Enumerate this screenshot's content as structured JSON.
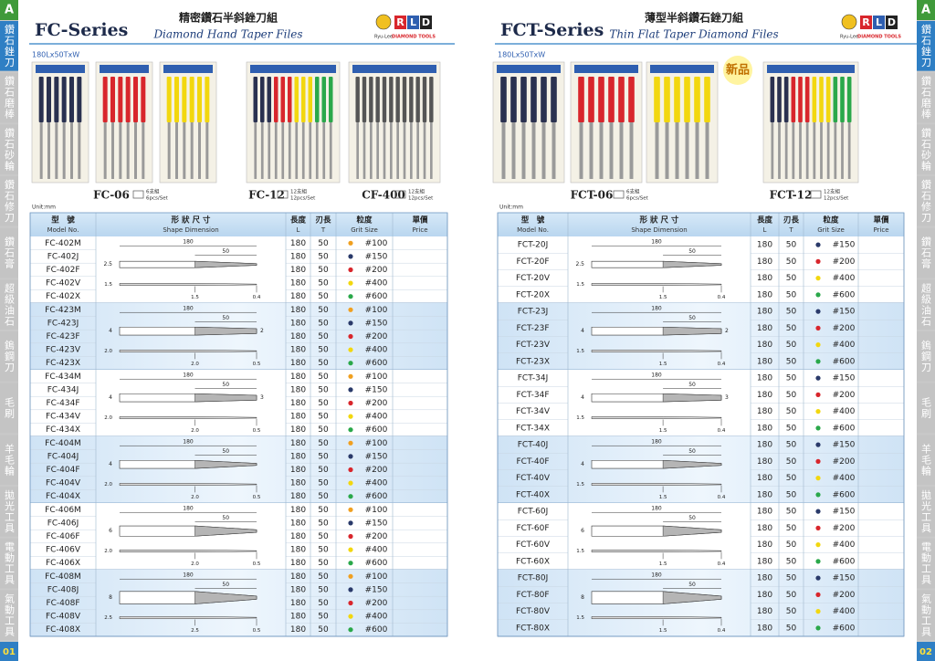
{
  "sidebar": {
    "letter": "A",
    "tabs": [
      "鑽石銼刀",
      "鑽石磨棒",
      "鑽石砂輪",
      "鑽石修刀",
      "鑽石膏",
      "超級油石",
      "鎢鋼刀",
      "毛刷",
      "羊毛輪",
      "拋光工具",
      "電動工具",
      "氣動工具"
    ],
    "pages": [
      "01",
      "02"
    ]
  },
  "grit_colors": {
    "#100": "#f0a020",
    "#150": "#2a3a6a",
    "#200": "#d8262c",
    "#400": "#f2d70f",
    "#600": "#2aa84a"
  },
  "pages": [
    {
      "series": "FC-Series",
      "title_zh": "精密鑽石半斜銼刀組",
      "title_en": "Diamond Hand Taper Files",
      "brand": [
        "R",
        "L",
        "D"
      ],
      "brand_sub": "Ryu-Lee",
      "brand_tag": "DIAMOND TOOLS",
      "size": "180Lx50TxW",
      "products": [
        {
          "name": "FC-06",
          "zh": "6支組",
          "en": "6pcs/Set"
        },
        {
          "name": "FC-12",
          "zh": "12支組",
          "en": "12pcs/Set"
        },
        {
          "name": "CF-400",
          "zh": "12支組",
          "en": "12pcs/Set"
        }
      ],
      "unit": "Unit:mm",
      "headers": [
        [
          "型　號",
          "Model No."
        ],
        [
          "形 狀 尺 寸",
          "Shape Dimension"
        ],
        [
          "長度",
          "L"
        ],
        [
          "刃長",
          "T"
        ],
        [
          "粒度",
          "Grit Size"
        ],
        [
          "單價",
          "Price"
        ]
      ],
      "groups": [
        {
          "dims": {
            "length": "180",
            "blade": "50",
            "width": "2.5",
            "thick": "1.5",
            "base": "1.5",
            "end": "0.4"
          },
          "rows": [
            [
              "FC-402M",
              180,
              50,
              "#100"
            ],
            [
              "FC-402J",
              180,
              50,
              "#150"
            ],
            [
              "FC-402F",
              180,
              50,
              "#200"
            ],
            [
              "FC-402V",
              180,
              50,
              "#400"
            ],
            [
              "FC-402X",
              180,
              50,
              "#600"
            ]
          ]
        },
        {
          "dims": {
            "length": "180",
            "blade": "50",
            "width": "4",
            "tip": "2",
            "thick": "2.0",
            "base": "2.0",
            "end": "0.5"
          },
          "rows": [
            [
              "FC-423M",
              180,
              50,
              "#100"
            ],
            [
              "FC-423J",
              180,
              50,
              "#150"
            ],
            [
              "FC-423F",
              180,
              50,
              "#200"
            ],
            [
              "FC-423V",
              180,
              50,
              "#400"
            ],
            [
              "FC-423X",
              180,
              50,
              "#600"
            ]
          ]
        },
        {
          "dims": {
            "length": "180",
            "blade": "50",
            "width": "4",
            "tip": "3",
            "thick": "2.0",
            "base": "2.0",
            "end": "0.5"
          },
          "rows": [
            [
              "FC-434M",
              180,
              50,
              "#100"
            ],
            [
              "FC-434J",
              180,
              50,
              "#150"
            ],
            [
              "FC-434F",
              180,
              50,
              "#200"
            ],
            [
              "FC-434V",
              180,
              50,
              "#400"
            ],
            [
              "FC-434X",
              180,
              50,
              "#600"
            ]
          ]
        },
        {
          "dims": {
            "length": "180",
            "blade": "50",
            "width": "4",
            "thick": "2.0",
            "base": "2.0",
            "end": "0.5"
          },
          "rows": [
            [
              "FC-404M",
              180,
              50,
              "#100"
            ],
            [
              "FC-404J",
              180,
              50,
              "#150"
            ],
            [
              "FC-404F",
              180,
              50,
              "#200"
            ],
            [
              "FC-404V",
              180,
              50,
              "#400"
            ],
            [
              "FC-404X",
              180,
              50,
              "#600"
            ]
          ]
        },
        {
          "dims": {
            "length": "180",
            "blade": "50",
            "width": "6",
            "thick": "2.0",
            "base": "2.0",
            "end": "0.5"
          },
          "rows": [
            [
              "FC-406M",
              180,
              50,
              "#100"
            ],
            [
              "FC-406J",
              180,
              50,
              "#150"
            ],
            [
              "FC-406F",
              180,
              50,
              "#200"
            ],
            [
              "FC-406V",
              180,
              50,
              "#400"
            ],
            [
              "FC-406X",
              180,
              50,
              "#600"
            ]
          ]
        },
        {
          "dims": {
            "length": "180",
            "blade": "50",
            "width": "8",
            "thick": "2.5",
            "base": "2.5",
            "end": "0.5"
          },
          "rows": [
            [
              "FC-408M",
              180,
              50,
              "#100"
            ],
            [
              "FC-408J",
              180,
              50,
              "#150"
            ],
            [
              "FC-408F",
              180,
              50,
              "#200"
            ],
            [
              "FC-408V",
              180,
              50,
              "#400"
            ],
            [
              "FC-408X",
              180,
              50,
              "#600"
            ]
          ]
        }
      ]
    },
    {
      "series": "FCT-Series",
      "title_zh": "薄型半斜鑽石銼刀組",
      "title_en": "Thin Flat Taper Diamond Files",
      "brand": [
        "R",
        "L",
        "D"
      ],
      "brand_sub": "Ryu-Lee",
      "brand_tag": "DIAMOND TOOLS",
      "size": "180Lx50TxW",
      "badge": "新品",
      "products": [
        {
          "name": "FCT-06",
          "zh": "6支組",
          "en": "6pcs/Set"
        },
        {
          "name": "FCT-12",
          "zh": "12支組",
          "en": "12pcs/Set"
        }
      ],
      "unit": "Unit:mm",
      "headers": [
        [
          "型　號",
          "Model No."
        ],
        [
          "形 狀 尺 寸",
          "Shape Dimension"
        ],
        [
          "長度",
          "L"
        ],
        [
          "刃長",
          "T"
        ],
        [
          "粒度",
          "Grit Size"
        ],
        [
          "單價",
          "Price"
        ]
      ],
      "groups": [
        {
          "dims": {
            "length": "180",
            "blade": "50",
            "width": "2.5",
            "thick": "1.5",
            "base": "1.5",
            "end": "0.4"
          },
          "rows": [
            [
              "FCT-20J",
              180,
              50,
              "#150"
            ],
            [
              "FCT-20F",
              180,
              50,
              "#200"
            ],
            [
              "FCT-20V",
              180,
              50,
              "#400"
            ],
            [
              "FCT-20X",
              180,
              50,
              "#600"
            ]
          ]
        },
        {
          "dims": {
            "length": "180",
            "blade": "50",
            "width": "4",
            "tip": "2",
            "thick": "1.5",
            "base": "1.5",
            "end": "0.4"
          },
          "rows": [
            [
              "FCT-23J",
              180,
              50,
              "#150"
            ],
            [
              "FCT-23F",
              180,
              50,
              "#200"
            ],
            [
              "FCT-23V",
              180,
              50,
              "#400"
            ],
            [
              "FCT-23X",
              180,
              50,
              "#600"
            ]
          ]
        },
        {
          "dims": {
            "length": "180",
            "blade": "50",
            "width": "4",
            "tip": "3",
            "thick": "1.5",
            "base": "1.5",
            "end": "0.4"
          },
          "rows": [
            [
              "FCT-34J",
              180,
              50,
              "#150"
            ],
            [
              "FCT-34F",
              180,
              50,
              "#200"
            ],
            [
              "FCT-34V",
              180,
              50,
              "#400"
            ],
            [
              "FCT-34X",
              180,
              50,
              "#600"
            ]
          ]
        },
        {
          "dims": {
            "length": "180",
            "blade": "50",
            "width": "4",
            "thick": "1.5",
            "base": "1.5",
            "end": "0.4"
          },
          "rows": [
            [
              "FCT-40J",
              180,
              50,
              "#150"
            ],
            [
              "FCT-40F",
              180,
              50,
              "#200"
            ],
            [
              "FCT-40V",
              180,
              50,
              "#400"
            ],
            [
              "FCT-40X",
              180,
              50,
              "#600"
            ]
          ]
        },
        {
          "dims": {
            "length": "180",
            "blade": "50",
            "width": "6",
            "thick": "1.5",
            "base": "1.5",
            "end": "0.4"
          },
          "rows": [
            [
              "FCT-60J",
              180,
              50,
              "#150"
            ],
            [
              "FCT-60F",
              180,
              50,
              "#200"
            ],
            [
              "FCT-60V",
              180,
              50,
              "#400"
            ],
            [
              "FCT-60X",
              180,
              50,
              "#600"
            ]
          ]
        },
        {
          "dims": {
            "length": "180",
            "blade": "50",
            "width": "8",
            "thick": "1.5",
            "base": "1.5",
            "end": "0.4"
          },
          "rows": [
            [
              "FCT-80J",
              180,
              50,
              "#150"
            ],
            [
              "FCT-80F",
              180,
              50,
              "#200"
            ],
            [
              "FCT-80V",
              180,
              50,
              "#400"
            ],
            [
              "FCT-80X",
              180,
              50,
              "#600"
            ]
          ]
        }
      ]
    }
  ]
}
